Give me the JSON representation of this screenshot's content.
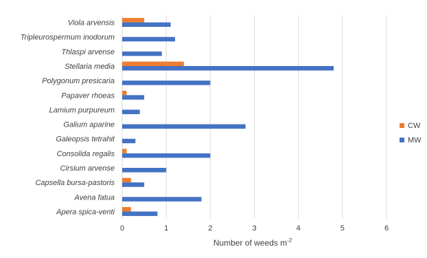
{
  "chart_data": {
    "type": "bar",
    "orientation": "horizontal",
    "categories": [
      "Viola arvensis",
      "Tripleurospermum inodorum",
      "Thlaspi arvense",
      "Stellaria media",
      "Polygonum presicaria",
      "Papaver rhoeas",
      "Lamium purpureum",
      "Galium aparine",
      "Galeopsis tetrahit",
      "Consolida regalis",
      "Cirsium arvense",
      "Capsella bursa-pastoris",
      "Avena fatua",
      "Apera spica-venti"
    ],
    "series": [
      {
        "name": "CW",
        "color": "#ED7D31",
        "values": [
          0.5,
          0,
          0,
          1.4,
          0,
          0.1,
          0,
          0,
          0,
          0.1,
          0,
          0.2,
          0,
          0.2
        ]
      },
      {
        "name": "MW",
        "color": "#4472C4",
        "values": [
          1.1,
          1.2,
          0.9,
          4.8,
          2.0,
          0.5,
          0.4,
          2.8,
          0.3,
          2.0,
          1.0,
          0.5,
          1.8,
          0.8
        ]
      }
    ],
    "xlabel_main": "Number of weeds m",
    "xlabel_sup": "-2",
    "xlim": [
      0,
      6
    ],
    "xticks": [
      "0",
      "1",
      "2",
      "3",
      "4",
      "5",
      "6"
    ],
    "grid": true,
    "legend_position": "right",
    "legend_order": [
      "CW",
      "MW"
    ]
  }
}
